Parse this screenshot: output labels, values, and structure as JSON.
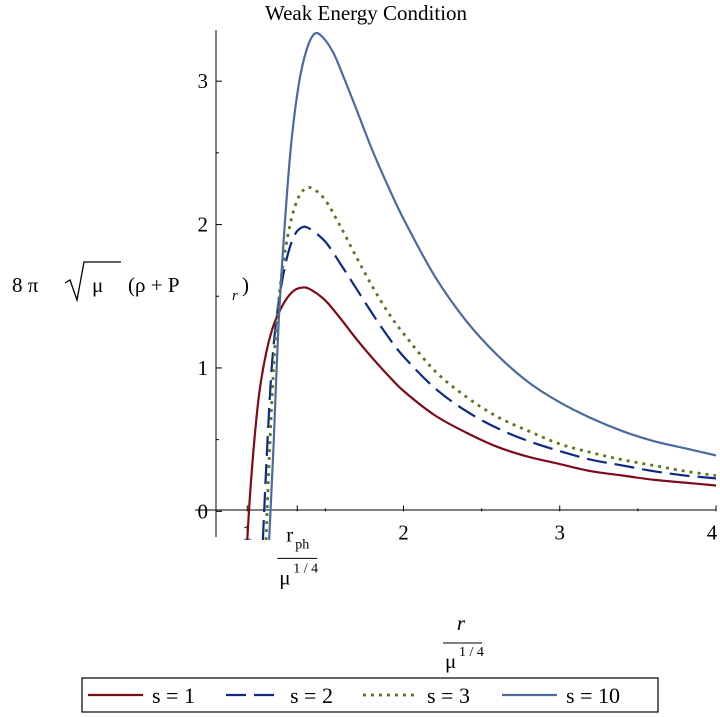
{
  "chart_data": {
    "type": "line",
    "title": "Weak Energy Condition",
    "ylabel": {
      "prefix": "8 π",
      "radicand": "μ",
      "body": "(ρ + P",
      "subscript": "r",
      "close": ")"
    },
    "xlabel": {
      "numerator": "r",
      "denominator_base": "μ",
      "denominator_exp": "1 / 4"
    },
    "xlim": [
      0.8,
      4
    ],
    "ylim": [
      -0.2,
      3.35
    ],
    "x_ticks": [
      {
        "value": 1,
        "label": "1"
      },
      {
        "value": 2,
        "label": "2"
      },
      {
        "value": 3,
        "label": "3"
      },
      {
        "value": 4,
        "label": "4"
      }
    ],
    "y_ticks": [
      {
        "value": 0,
        "label": "0"
      },
      {
        "value": 1,
        "label": "1"
      },
      {
        "value": 2,
        "label": "2"
      },
      {
        "value": 3,
        "label": "3"
      }
    ],
    "special_tick": {
      "value": 1.32,
      "numerator_base": "r",
      "numerator_sub": "ph",
      "denominator_base": "μ",
      "denominator_exp": "1 / 4"
    },
    "legend_position": "bottom",
    "series": [
      {
        "name": "s = 1",
        "color": "#7b0c18",
        "dash": "solid",
        "points": [
          [
            1.0,
            -0.2
          ],
          [
            1.02,
            0.15
          ],
          [
            1.05,
            0.55
          ],
          [
            1.08,
            0.85
          ],
          [
            1.12,
            1.1
          ],
          [
            1.16,
            1.27
          ],
          [
            1.2,
            1.38
          ],
          [
            1.25,
            1.48
          ],
          [
            1.3,
            1.54
          ],
          [
            1.35,
            1.56
          ],
          [
            1.4,
            1.55
          ],
          [
            1.5,
            1.47
          ],
          [
            1.6,
            1.34
          ],
          [
            1.7,
            1.2
          ],
          [
            1.8,
            1.07
          ],
          [
            1.9,
            0.95
          ],
          [
            2.0,
            0.84
          ],
          [
            2.2,
            0.67
          ],
          [
            2.4,
            0.55
          ],
          [
            2.6,
            0.45
          ],
          [
            2.8,
            0.38
          ],
          [
            3.0,
            0.33
          ],
          [
            3.2,
            0.28
          ],
          [
            3.4,
            0.25
          ],
          [
            3.6,
            0.22
          ],
          [
            3.8,
            0.2
          ],
          [
            4.0,
            0.18
          ]
        ]
      },
      {
        "name": "s = 2",
        "color": "#0d2a85",
        "dash": "long-dash",
        "points": [
          [
            1.1,
            -0.2
          ],
          [
            1.13,
            0.5
          ],
          [
            1.16,
            1.05
          ],
          [
            1.2,
            1.45
          ],
          [
            1.25,
            1.75
          ],
          [
            1.3,
            1.92
          ],
          [
            1.35,
            1.98
          ],
          [
            1.4,
            1.97
          ],
          [
            1.5,
            1.88
          ],
          [
            1.6,
            1.72
          ],
          [
            1.7,
            1.55
          ],
          [
            1.8,
            1.38
          ],
          [
            1.9,
            1.22
          ],
          [
            2.0,
            1.08
          ],
          [
            2.2,
            0.86
          ],
          [
            2.4,
            0.7
          ],
          [
            2.6,
            0.58
          ],
          [
            2.8,
            0.49
          ],
          [
            3.0,
            0.42
          ],
          [
            3.2,
            0.36
          ],
          [
            3.4,
            0.32
          ],
          [
            3.6,
            0.28
          ],
          [
            3.8,
            0.25
          ],
          [
            4.0,
            0.23
          ]
        ]
      },
      {
        "name": "s = 3",
        "color": "#5b7a1e",
        "dash": "dotted",
        "points": [
          [
            1.12,
            -0.2
          ],
          [
            1.15,
            0.6
          ],
          [
            1.18,
            1.2
          ],
          [
            1.22,
            1.65
          ],
          [
            1.27,
            1.98
          ],
          [
            1.32,
            2.17
          ],
          [
            1.37,
            2.25
          ],
          [
            1.42,
            2.25
          ],
          [
            1.5,
            2.17
          ],
          [
            1.6,
            1.98
          ],
          [
            1.7,
            1.77
          ],
          [
            1.8,
            1.57
          ],
          [
            1.9,
            1.39
          ],
          [
            2.0,
            1.24
          ],
          [
            2.2,
            0.98
          ],
          [
            2.4,
            0.8
          ],
          [
            2.6,
            0.66
          ],
          [
            2.8,
            0.56
          ],
          [
            3.0,
            0.47
          ],
          [
            3.2,
            0.41
          ],
          [
            3.4,
            0.36
          ],
          [
            3.6,
            0.32
          ],
          [
            3.8,
            0.28
          ],
          [
            4.0,
            0.25
          ]
        ]
      },
      {
        "name": "s = 10",
        "color": "#4a6aa0",
        "dash": "solid",
        "points": [
          [
            1.14,
            -0.2
          ],
          [
            1.17,
            0.5
          ],
          [
            1.2,
            1.3
          ],
          [
            1.24,
            2.0
          ],
          [
            1.28,
            2.55
          ],
          [
            1.33,
            2.98
          ],
          [
            1.38,
            3.22
          ],
          [
            1.43,
            3.33
          ],
          [
            1.48,
            3.31
          ],
          [
            1.55,
            3.2
          ],
          [
            1.62,
            3.02
          ],
          [
            1.7,
            2.8
          ],
          [
            1.8,
            2.52
          ],
          [
            1.9,
            2.27
          ],
          [
            2.0,
            2.04
          ],
          [
            2.2,
            1.64
          ],
          [
            2.4,
            1.33
          ],
          [
            2.6,
            1.09
          ],
          [
            2.8,
            0.9
          ],
          [
            3.0,
            0.76
          ],
          [
            3.2,
            0.65
          ],
          [
            3.4,
            0.56
          ],
          [
            3.6,
            0.49
          ],
          [
            3.8,
            0.44
          ],
          [
            4.0,
            0.39
          ]
        ]
      }
    ]
  }
}
